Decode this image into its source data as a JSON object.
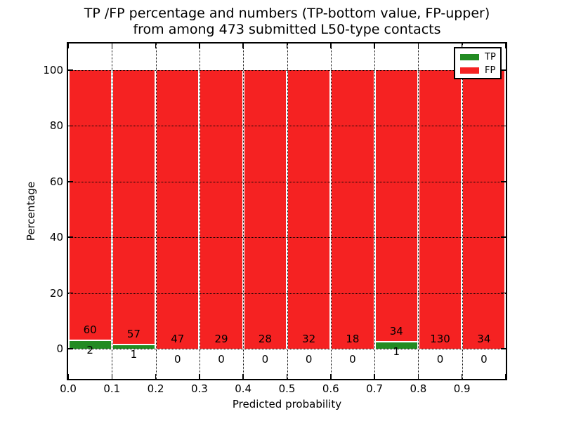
{
  "chart_data": {
    "type": "bar",
    "stacked": true,
    "normalized_to_percent": true,
    "title_lines": [
      "TP /FP percentage and numbers (TP-bottom value, FP-upper)",
      "from among 473 submitted L50-type contacts"
    ],
    "xlabel": "Predicted probability",
    "ylabel": "Percentage",
    "total_contacts": 473,
    "bin_starts": [
      0.0,
      0.1,
      0.2,
      0.3,
      0.4,
      0.5,
      0.6,
      0.7,
      0.8,
      0.9
    ],
    "bin_width": 0.1,
    "series": [
      {
        "name": "TP",
        "color": "#228b22",
        "counts": [
          2,
          1,
          0,
          0,
          0,
          0,
          0,
          1,
          0,
          0
        ]
      },
      {
        "name": "FP",
        "color": "#f52222",
        "counts": [
          60,
          57,
          47,
          29,
          28,
          32,
          18,
          34,
          130,
          34
        ]
      }
    ],
    "bar_label_note": "TP count shown below bar base, FP count shown above TP segment",
    "xticks": [
      "0.0",
      "0.1",
      "0.2",
      "0.3",
      "0.4",
      "0.5",
      "0.6",
      "0.7",
      "0.8",
      "0.9"
    ],
    "yticks": [
      "0",
      "20",
      "40",
      "60",
      "80",
      "100"
    ],
    "ytick_values": [
      0,
      20,
      40,
      60,
      80,
      100
    ],
    "xlim": [
      0,
      1
    ],
    "ylim": [
      -10.8,
      109.6
    ],
    "grid": "dotted",
    "legend_position": "upper right"
  }
}
